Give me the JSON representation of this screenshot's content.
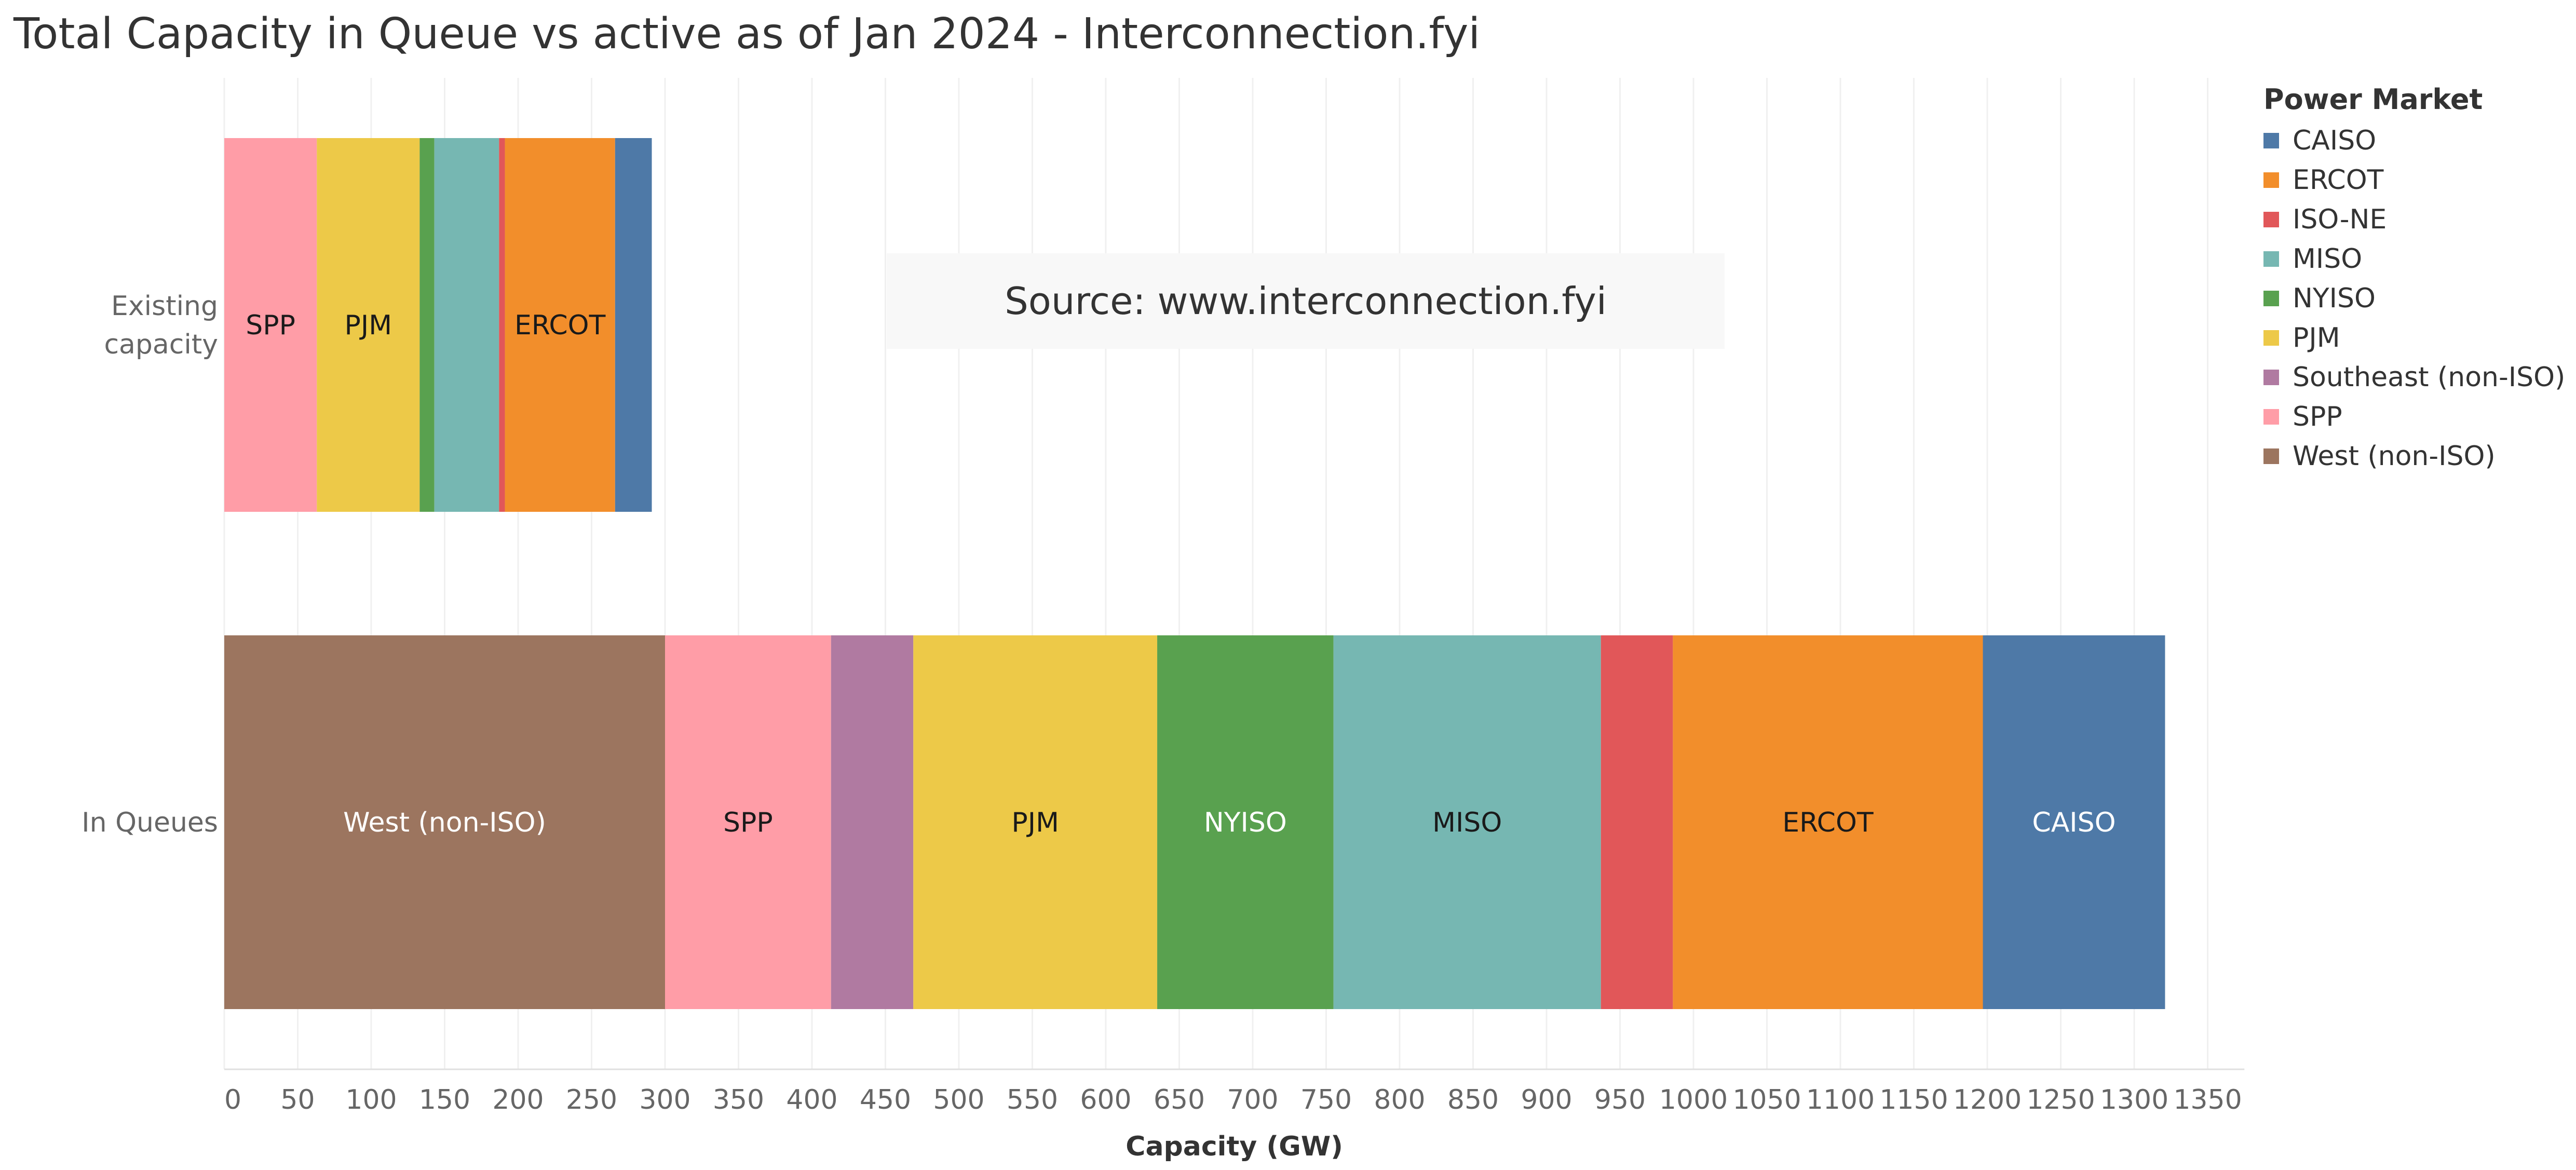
{
  "title": "Total Capacity in Queue vs active as of Jan 2024 - Interconnection.fyi",
  "source_note": "Source: www.interconnection.fyi",
  "legend": {
    "title": "Power Market",
    "items": [
      {
        "label": "CAISO",
        "color": "#4e79a7"
      },
      {
        "label": "ERCOT",
        "color": "#f28e2b"
      },
      {
        "label": "ISO-NE",
        "color": "#e15759"
      },
      {
        "label": "MISO",
        "color": "#76b7b2"
      },
      {
        "label": "NYISO",
        "color": "#59a14f"
      },
      {
        "label": "PJM",
        "color": "#edc948"
      },
      {
        "label": "Southeast (non-ISO)",
        "color": "#b07aa1"
      },
      {
        "label": "SPP",
        "color": "#ff9da7"
      },
      {
        "label": "West (non-ISO)",
        "color": "#9c755f"
      }
    ]
  },
  "chart_data": {
    "type": "bar",
    "orientation": "horizontal",
    "stacked": true,
    "xlabel": "Capacity (GW)",
    "xlim": [
      0,
      1375
    ],
    "xticks": [
      0,
      50,
      100,
      150,
      200,
      250,
      300,
      350,
      400,
      450,
      500,
      550,
      600,
      650,
      700,
      750,
      800,
      850,
      900,
      950,
      1000,
      1050,
      1100,
      1150,
      1200,
      1250,
      1300,
      1350
    ],
    "grid": "vertical",
    "legend_position": "right",
    "categories": [
      {
        "label": "Existing\ncapacity",
        "segments": [
          {
            "market": "SPP",
            "value": 63,
            "show_label": true
          },
          {
            "market": "PJM",
            "value": 70,
            "show_label": true
          },
          {
            "market": "NYISO",
            "value": 10,
            "show_label": false
          },
          {
            "market": "MISO",
            "value": 44,
            "show_label": false
          },
          {
            "market": "ISO-NE",
            "value": 4,
            "show_label": false
          },
          {
            "market": "ERCOT",
            "value": 75,
            "show_label": true
          },
          {
            "market": "CAISO",
            "value": 25,
            "show_label": false
          }
        ]
      },
      {
        "label": "In Queues",
        "segments": [
          {
            "market": "West (non-ISO)",
            "value": 300,
            "show_label": true
          },
          {
            "market": "SPP",
            "value": 113,
            "show_label": true
          },
          {
            "market": "Southeast (non-ISO)",
            "value": 56,
            "show_label": false
          },
          {
            "market": "PJM",
            "value": 166,
            "show_label": true
          },
          {
            "market": "NYISO",
            "value": 120,
            "show_label": true
          },
          {
            "market": "MISO",
            "value": 182,
            "show_label": true
          },
          {
            "market": "ISO-NE",
            "value": 49,
            "show_label": false
          },
          {
            "market": "ERCOT",
            "value": 211,
            "show_label": true
          },
          {
            "market": "CAISO",
            "value": 124,
            "show_label": true
          }
        ]
      }
    ]
  }
}
